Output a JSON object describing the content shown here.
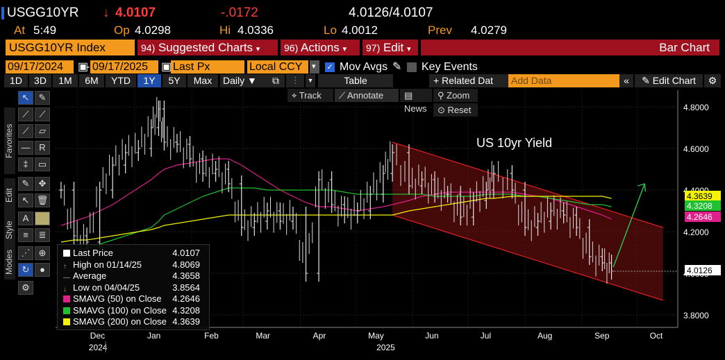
{
  "ticker": {
    "symbol": "USGG10YR",
    "last": "4.0107",
    "change": "-.0172",
    "bid_ask": "4.0126/4.0107",
    "at_label": "At",
    "time": "5:49",
    "op_label": "Op",
    "open": "4.0298",
    "hi_label": "Hi",
    "high": "4.0336",
    "lo_label": "Lo",
    "low": "4.0012",
    "prev_label": "Prev",
    "prev": "4.0279"
  },
  "toolbar": {
    "security": "USGG10YR Index",
    "suggested_num": "94)",
    "suggested": "Suggested Charts",
    "actions_num": "96)",
    "actions": "Actions",
    "edit_num": "97)",
    "edit": "Edit",
    "chart_type": "Bar Chart"
  },
  "controls": {
    "start_date": "09/17/2024",
    "end_date": "09/17/2025",
    "field": "Last Px",
    "currency": "Local CCY",
    "mov_avgs": "Mov Avgs",
    "key_events": "Key Events"
  },
  "periods": [
    "1D",
    "3D",
    "1M",
    "6M",
    "YTD",
    "1Y",
    "5Y",
    "Max"
  ],
  "selected_period": "1Y",
  "frequency": "Daily",
  "table_label": "Table",
  "related_data": "Related Dat",
  "add_data_placeholder": "Add Data",
  "edit_chart": "Edit Chart",
  "annotate_bar": {
    "track": "Track",
    "annotate": "Annotate",
    "news": "News",
    "zoom": "Zoom",
    "reset": "Reset"
  },
  "sidebar": {
    "favorites": "Favorites",
    "edit": "Edit",
    "style": "Style",
    "modes": "Modes"
  },
  "legend": [
    {
      "label": "Last Price",
      "value": "4.0107",
      "swatch": "#ffffff"
    },
    {
      "label": "High on 01/14/25",
      "value": "4.8069",
      "swatch": ""
    },
    {
      "label": "Average",
      "value": "4.3658",
      "swatch": ""
    },
    {
      "label": "Low on 04/04/25",
      "value": "3.8564",
      "swatch": ""
    },
    {
      "label": "SMAVG (50)  on Close",
      "value": "4.2646",
      "swatch": "#e0208a"
    },
    {
      "label": "SMAVG (100)  on Close",
      "value": "4.3208",
      "swatch": "#20c030"
    },
    {
      "label": "SMAVG (200)  on Close",
      "value": "4.3639",
      "swatch": "#f4f400"
    }
  ],
  "chart_data": {
    "type": "line",
    "annotation": "US 10yr Yield",
    "xlabel": "",
    "ylabel": "",
    "ylim": [
      3.74,
      4.88
    ],
    "y_ticks": [
      "4.8000",
      "4.6000",
      "4.4000",
      "4.2000",
      "4.0000",
      "3.8000"
    ],
    "x_month_labels": [
      "Dec",
      "Jan",
      "Feb",
      "Mar",
      "Apr",
      "May",
      "Jun",
      "Jul",
      "Aug",
      "Sep",
      "Oct"
    ],
    "x_year_labels": [
      "2024",
      "2025"
    ],
    "axis_tags": [
      {
        "value": "4.3639",
        "color": "#f4f400"
      },
      {
        "value": "4.3208",
        "color": "#20c030"
      },
      {
        "value": "4.2646",
        "color": "#e0208a"
      },
      {
        "value": "4.0126",
        "color": "#ffffff"
      }
    ],
    "dates": [
      "2024-11-22",
      "2024-11-29",
      "2024-12-06",
      "2024-12-13",
      "2024-12-20",
      "2024-12-27",
      "2025-01-03",
      "2025-01-10",
      "2025-01-14",
      "2025-01-17",
      "2025-01-24",
      "2025-01-31",
      "2025-02-07",
      "2025-02-14",
      "2025-02-21",
      "2025-02-28",
      "2025-03-07",
      "2025-03-14",
      "2025-03-21",
      "2025-03-28",
      "2025-04-04",
      "2025-04-11",
      "2025-04-18",
      "2025-04-25",
      "2025-05-02",
      "2025-05-09",
      "2025-05-16",
      "2025-05-21",
      "2025-05-30",
      "2025-06-06",
      "2025-06-13",
      "2025-06-20",
      "2025-06-27",
      "2025-07-04",
      "2025-07-11",
      "2025-07-15",
      "2025-07-25",
      "2025-08-01",
      "2025-08-08",
      "2025-08-15",
      "2025-08-22",
      "2025-08-29",
      "2025-09-05",
      "2025-09-12",
      "2025-09-17"
    ],
    "series": [
      {
        "name": "Last Price",
        "values": [
          4.4,
          4.18,
          4.15,
          4.4,
          4.52,
          4.58,
          4.6,
          4.7,
          4.79,
          4.63,
          4.62,
          4.55,
          4.48,
          4.5,
          4.43,
          4.22,
          4.25,
          4.3,
          4.25,
          4.28,
          4.0,
          4.45,
          4.33,
          4.28,
          4.3,
          4.38,
          4.48,
          4.58,
          4.42,
          4.45,
          4.38,
          4.38,
          4.27,
          4.35,
          4.4,
          4.48,
          4.4,
          4.22,
          4.25,
          4.3,
          4.28,
          4.22,
          4.08,
          4.05,
          4.01
        ]
      },
      {
        "name": "SMAVG (50)",
        "values": [
          4.23,
          4.25,
          4.27,
          4.3,
          4.33,
          4.37,
          4.41,
          4.45,
          4.48,
          4.5,
          4.52,
          4.53,
          4.54,
          4.55,
          4.55,
          4.52,
          4.48,
          4.44,
          4.4,
          4.37,
          4.34,
          4.32,
          4.32,
          4.31,
          4.3,
          4.31,
          4.32,
          4.33,
          4.35,
          4.37,
          4.38,
          4.39,
          4.39,
          4.39,
          4.39,
          4.39,
          4.39,
          4.38,
          4.37,
          4.36,
          4.34,
          4.32,
          4.3,
          4.28,
          4.26
        ]
      },
      {
        "name": "SMAVG (100)",
        "values": [
          4.1,
          4.11,
          4.12,
          4.14,
          4.16,
          4.18,
          4.2,
          4.22,
          4.25,
          4.28,
          4.31,
          4.34,
          4.37,
          4.39,
          4.41,
          4.41,
          4.41,
          4.4,
          4.4,
          4.4,
          4.4,
          4.4,
          4.4,
          4.39,
          4.38,
          4.38,
          4.38,
          4.38,
          4.38,
          4.38,
          4.37,
          4.37,
          4.37,
          4.37,
          4.38,
          4.38,
          4.38,
          4.37,
          4.37,
          4.36,
          4.35,
          4.34,
          4.33,
          4.33,
          4.32
        ]
      },
      {
        "name": "SMAVG (200)",
        "values": [
          4.15,
          4.16,
          4.16,
          4.17,
          4.18,
          4.19,
          4.2,
          4.21,
          4.22,
          4.23,
          4.24,
          4.25,
          4.26,
          4.27,
          4.28,
          4.28,
          4.28,
          4.28,
          4.28,
          4.28,
          4.28,
          4.28,
          4.28,
          4.28,
          4.28,
          4.28,
          4.28,
          4.28,
          4.3,
          4.31,
          4.32,
          4.33,
          4.34,
          4.35,
          4.36,
          4.36,
          4.37,
          4.37,
          4.37,
          4.37,
          4.37,
          4.37,
          4.37,
          4.37,
          4.36
        ]
      }
    ],
    "channel": {
      "upper_start": [
        "2025-05-21",
        4.63
      ],
      "upper_end": [
        "2025-10-15",
        4.22
      ],
      "lower_start": [
        "2025-05-21",
        4.28
      ],
      "lower_end": [
        "2025-10-15",
        3.87
      ]
    },
    "arrow": {
      "from": [
        "2025-09-18",
        4.03
      ],
      "to": [
        "2025-10-05",
        4.43
      ]
    }
  }
}
